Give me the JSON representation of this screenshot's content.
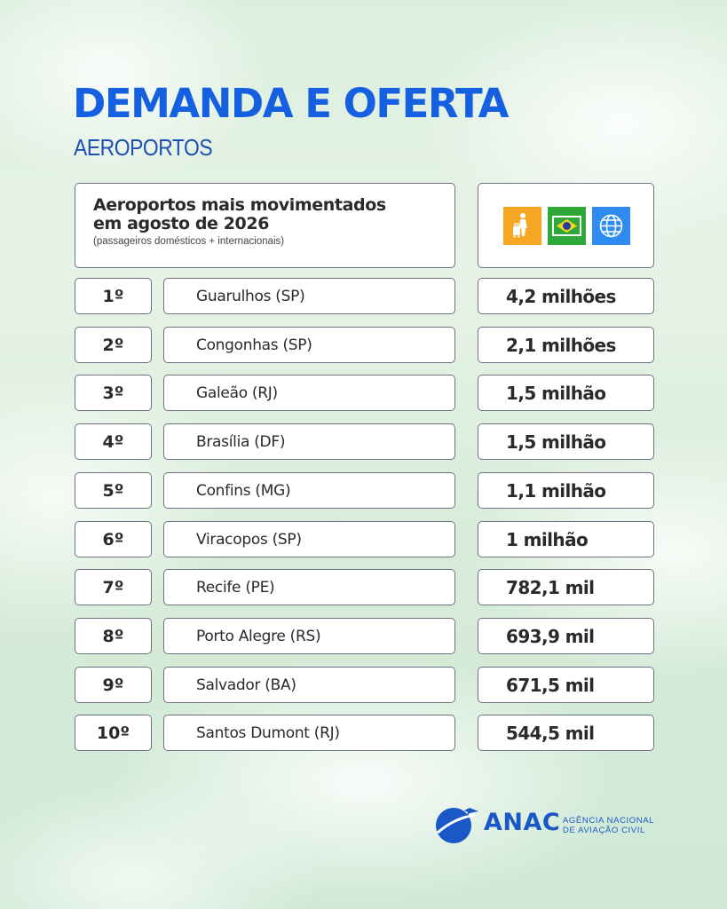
{
  "header": {
    "title": "DEMANDA E OFERTA",
    "subtitle": "AEROPORTOS"
  },
  "table": {
    "heading_line1": "Aeroportos mais movimentados",
    "heading_line2": "em agosto de 2026",
    "note": "(passageiros domésticos + internacionais)",
    "icons": [
      "traveler-luggage-icon",
      "brazil-flag-icon",
      "globe-icon"
    ],
    "rows": [
      {
        "rank": "1º",
        "airport": "Guarulhos (SP)",
        "value": "4,2 milhões"
      },
      {
        "rank": "2º",
        "airport": "Congonhas (SP)",
        "value": "2,1 milhões"
      },
      {
        "rank": "3º",
        "airport": "Galeão (RJ)",
        "value": "1,5 milhão"
      },
      {
        "rank": "4º",
        "airport": "Brasília (DF)",
        "value": "1,5 milhão"
      },
      {
        "rank": "5º",
        "airport": "Confins (MG)",
        "value": "1,1 milhão"
      },
      {
        "rank": "6º",
        "airport": "Viracopos (SP)",
        "value": "1 milhão"
      },
      {
        "rank": "7º",
        "airport": "Recife (PE)",
        "value": "782,1 mil"
      },
      {
        "rank": "8º",
        "airport": "Porto Alegre (RS)",
        "value": "693,9 mil"
      },
      {
        "rank": "9º",
        "airport": "Salvador (BA)",
        "value": "671,5 mil"
      },
      {
        "rank": "10º",
        "airport": "Santos Dumont (RJ)",
        "value": "544,5 mil"
      }
    ]
  },
  "logo": {
    "name": "ANAC",
    "sub_line1": "AGÊNCIA NACIONAL",
    "sub_line2": "DE AVIAÇÃO CIVIL"
  },
  "colors": {
    "title_blue": "#1560e0",
    "travel_icon_bg": "#f5a623",
    "brazil_icon_bg": "#2fa83a",
    "globe_icon_bg": "#2e8cf0"
  }
}
